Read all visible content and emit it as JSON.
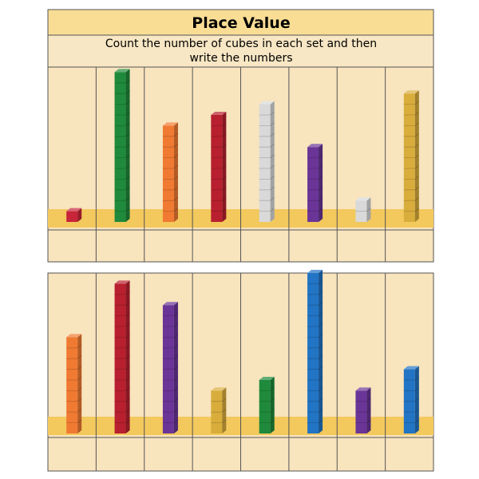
{
  "header": {
    "title": "Place Value",
    "instructions": "Count the number of cubes in each set and then write the numbers"
  },
  "sets": [
    {
      "cubes": [
        1,
        14,
        9,
        10,
        11,
        7,
        2,
        12
      ],
      "colors": [
        "#c8243a",
        "#1f8a3b",
        "#f07a32",
        "#b8202f",
        "#d9d9d9",
        "#6a3597",
        "#d9d9d9",
        "#d9ad3c"
      ]
    },
    {
      "cubes": [
        9,
        14,
        12,
        4,
        5,
        15,
        4,
        6
      ],
      "colors": [
        "#f07a32",
        "#b8202f",
        "#6a3597",
        "#d9ad3c",
        "#1f8a3b",
        "#2274c4",
        "#6a3597",
        "#2274c4"
      ]
    }
  ]
}
